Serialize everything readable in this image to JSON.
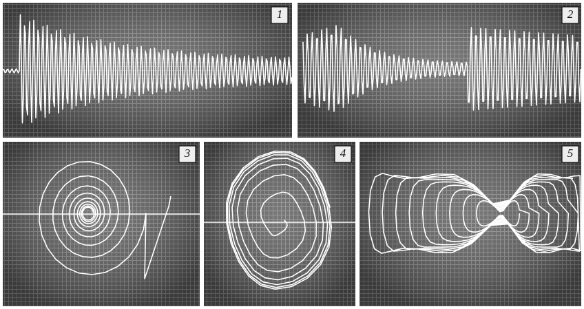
{
  "panels": [
    {
      "label": "1"
    },
    {
      "label": "2"
    },
    {
      "label": "3"
    },
    {
      "label": "4"
    },
    {
      "label": "5"
    }
  ]
}
